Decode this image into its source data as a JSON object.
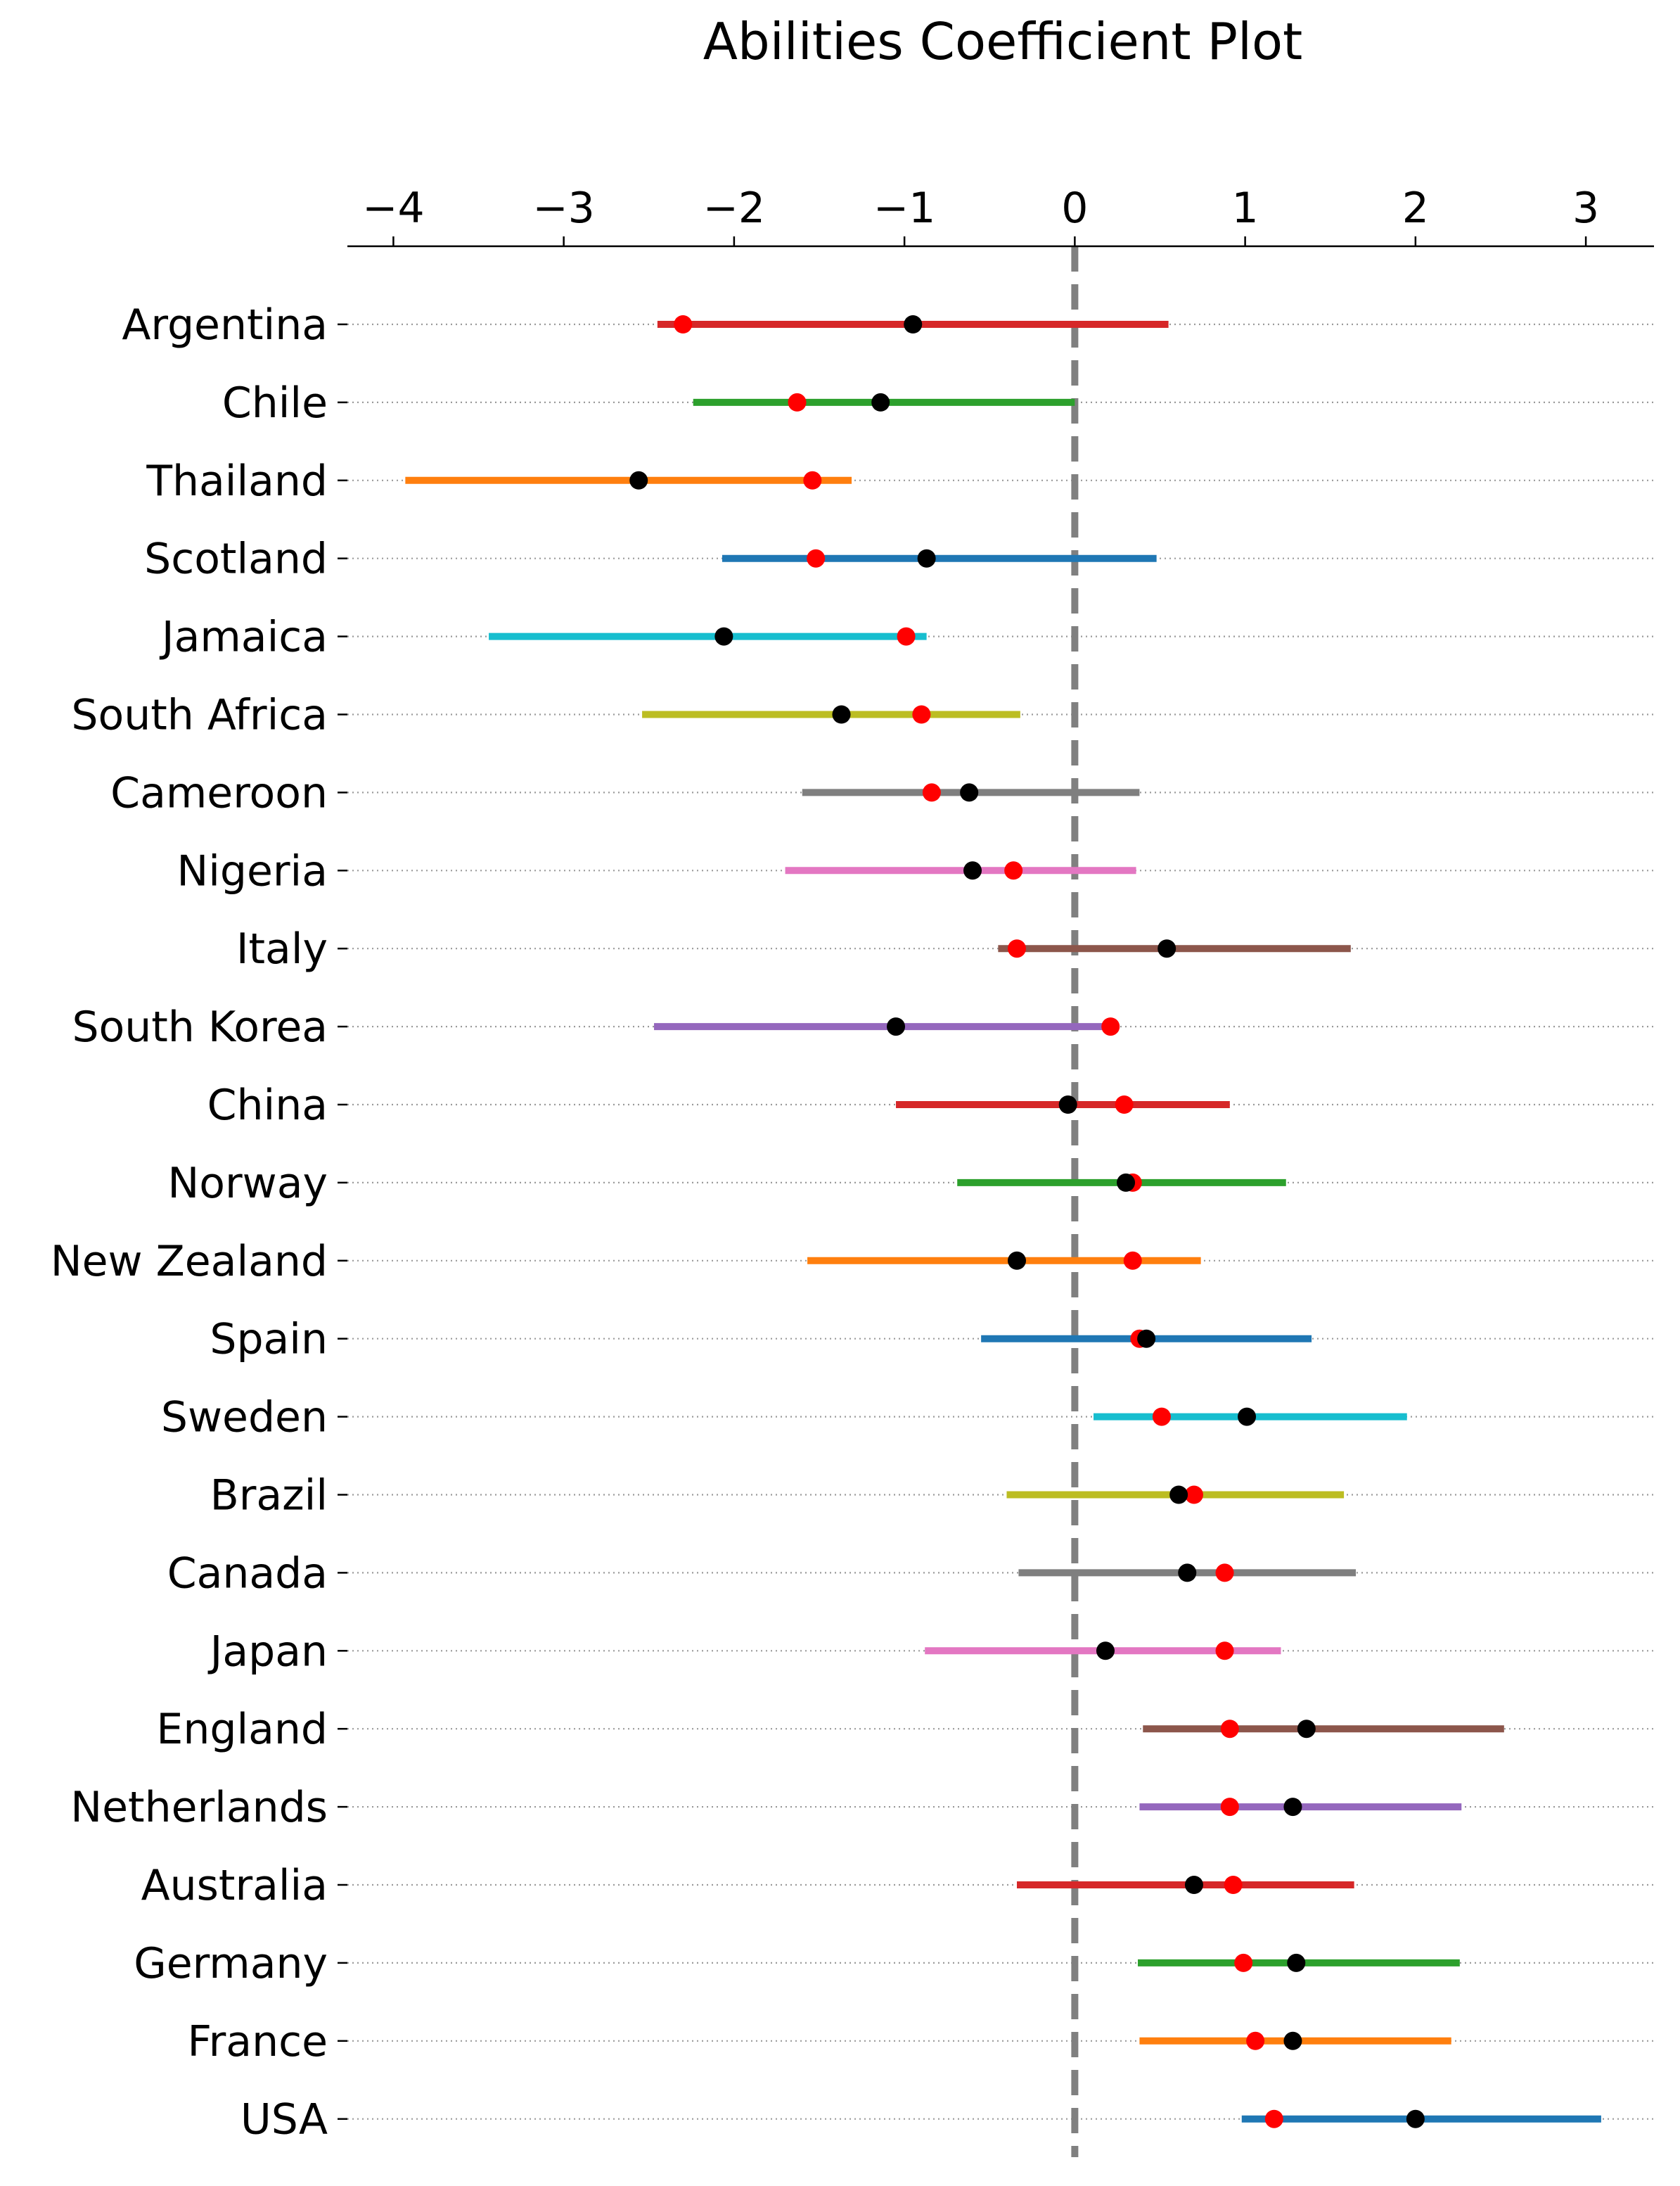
{
  "chart_data": {
    "type": "coefficient-dot-interval",
    "title": "Abilities Coefficient Plot",
    "xlim": [
      -4.27,
      3.4
    ],
    "x_ticks": [
      -4,
      -3,
      -2,
      -1,
      0,
      1,
      2,
      3
    ],
    "x_tick_labels": [
      "−4",
      "−3",
      "−2",
      "−1",
      "0",
      "1",
      "2",
      "3"
    ],
    "x_axis_position": "top",
    "reference_line": {
      "x": 0,
      "style": "dashed",
      "color": "#808080"
    },
    "grid": "horizontal dotted per row",
    "markers": [
      {
        "name": "red",
        "color": "#ff0000"
      },
      {
        "name": "black",
        "color": "#000000"
      }
    ],
    "categories": [
      "Argentina",
      "Chile",
      "Thailand",
      "Scotland",
      "Jamaica",
      "South Africa",
      "Cameroon",
      "Nigeria",
      "Italy",
      "South Korea",
      "China",
      "Norway",
      "New Zealand",
      "Spain",
      "Sweden",
      "Brazil",
      "Canada",
      "Japan",
      "England",
      "Netherlands",
      "Australia",
      "Germany",
      "France",
      "USA"
    ],
    "rows": [
      {
        "label": "Argentina",
        "low": -2.45,
        "high": 0.55,
        "red": -2.3,
        "black": -0.95,
        "color": "#d62728"
      },
      {
        "label": "Chile",
        "low": -2.24,
        "high": 0.0,
        "red": -1.63,
        "black": -1.14,
        "color": "#2ca02c"
      },
      {
        "label": "Thailand",
        "low": -3.93,
        "high": -1.31,
        "red": -1.54,
        "black": -2.56,
        "color": "#ff7f0e"
      },
      {
        "label": "Scotland",
        "low": -2.07,
        "high": 0.48,
        "red": -1.52,
        "black": -0.87,
        "color": "#1f77b4"
      },
      {
        "label": "Jamaica",
        "low": -3.44,
        "high": -0.87,
        "red": -0.99,
        "black": -2.06,
        "color": "#17becf"
      },
      {
        "label": "South Africa",
        "low": -2.54,
        "high": -0.32,
        "red": -0.9,
        "black": -1.37,
        "color": "#bcbd22"
      },
      {
        "label": "Cameroon",
        "low": -1.6,
        "high": 0.38,
        "red": -0.84,
        "black": -0.62,
        "color": "#7f7f7f"
      },
      {
        "label": "Nigeria",
        "low": -1.7,
        "high": 0.36,
        "red": -0.36,
        "black": -0.6,
        "color": "#e377c2"
      },
      {
        "label": "Italy",
        "low": -0.45,
        "high": 1.62,
        "red": -0.34,
        "black": 0.54,
        "color": "#8c564b"
      },
      {
        "label": "South Korea",
        "low": -2.47,
        "high": 0.2,
        "red": 0.21,
        "black": -1.05,
        "color": "#9467bd"
      },
      {
        "label": "China",
        "low": -1.05,
        "high": 0.91,
        "red": 0.29,
        "black": -0.04,
        "color": "#d62728"
      },
      {
        "label": "Norway",
        "low": -0.69,
        "high": 1.24,
        "red": 0.34,
        "black": 0.3,
        "color": "#2ca02c"
      },
      {
        "label": "New Zealand",
        "low": -1.57,
        "high": 0.74,
        "red": 0.34,
        "black": -0.34,
        "color": "#ff7f0e"
      },
      {
        "label": "Spain",
        "low": -0.55,
        "high": 1.39,
        "red": 0.38,
        "black": 0.42,
        "color": "#1f77b4"
      },
      {
        "label": "Sweden",
        "low": 0.11,
        "high": 1.95,
        "red": 0.51,
        "black": 1.01,
        "color": "#17becf"
      },
      {
        "label": "Brazil",
        "low": -0.4,
        "high": 1.58,
        "red": 0.7,
        "black": 0.61,
        "color": "#bcbd22"
      },
      {
        "label": "Canada",
        "low": -0.33,
        "high": 1.65,
        "red": 0.88,
        "black": 0.66,
        "color": "#7f7f7f"
      },
      {
        "label": "Japan",
        "low": -0.88,
        "high": 1.21,
        "red": 0.88,
        "black": 0.18,
        "color": "#e377c2"
      },
      {
        "label": "England",
        "low": 0.4,
        "high": 2.52,
        "red": 0.91,
        "black": 1.36,
        "color": "#8c564b"
      },
      {
        "label": "Netherlands",
        "low": 0.38,
        "high": 2.27,
        "red": 0.91,
        "black": 1.28,
        "color": "#9467bd"
      },
      {
        "label": "Australia",
        "low": -0.34,
        "high": 1.64,
        "red": 0.93,
        "black": 0.7,
        "color": "#d62728"
      },
      {
        "label": "Germany",
        "low": 0.37,
        "high": 2.26,
        "red": 0.99,
        "black": 1.3,
        "color": "#2ca02c"
      },
      {
        "label": "France",
        "low": 0.38,
        "high": 2.21,
        "red": 1.06,
        "black": 1.28,
        "color": "#ff7f0e"
      },
      {
        "label": "USA",
        "low": 0.98,
        "high": 3.09,
        "red": 1.17,
        "black": 2.0,
        "color": "#1f77b4"
      }
    ]
  }
}
